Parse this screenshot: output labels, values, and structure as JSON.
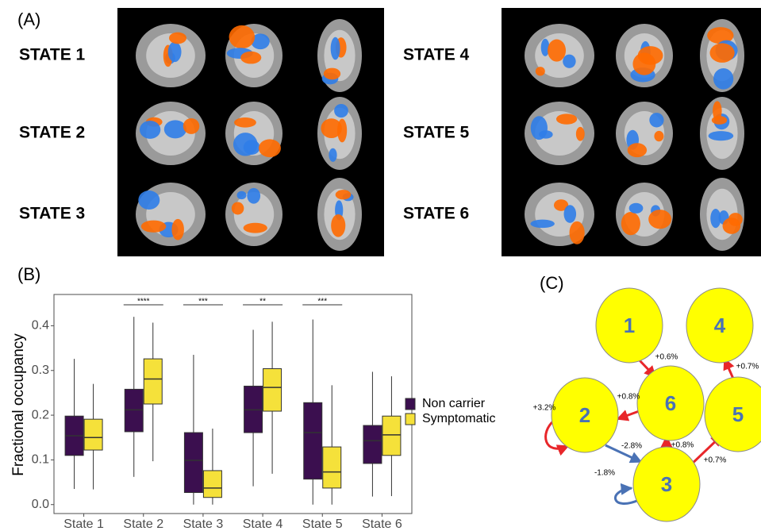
{
  "panel_a": {
    "label": "(A)",
    "states": [
      "STATE 1",
      "STATE 2",
      "STATE 3",
      "STATE 4",
      "STATE 5",
      "STATE 6"
    ]
  },
  "chart_data": {
    "type": "box",
    "label": "(B)",
    "y_label": "Fractional occupancy",
    "categories": [
      "State 1",
      "State 2",
      "State 3",
      "State 4",
      "State 5",
      "State 6"
    ],
    "significance": [
      null,
      "****",
      "***",
      "**",
      "***",
      null
    ],
    "ylim": [
      -0.02,
      0.47
    ],
    "yticks": [
      {
        "value": 0,
        "label": "0.0"
      },
      0.1,
      0.2,
      0.3,
      0.4
    ],
    "grid": false,
    "legend": "right",
    "series": [
      {
        "name": "Non carrier",
        "color": "#3b0f4f",
        "boxes": [
          {
            "low": 0.035,
            "q1": 0.11,
            "median": 0.154,
            "q3": 0.198,
            "high": 0.326
          },
          {
            "low": 0.062,
            "q1": 0.163,
            "median": 0.212,
            "q3": 0.258,
            "high": 0.42
          },
          {
            "low": 0.0,
            "q1": 0.027,
            "median": 0.099,
            "q3": 0.161,
            "high": 0.335
          },
          {
            "low": 0.041,
            "q1": 0.161,
            "median": 0.212,
            "q3": 0.265,
            "high": 0.391
          },
          {
            "low": 0.0,
            "q1": 0.057,
            "median": 0.161,
            "q3": 0.228,
            "high": 0.414
          },
          {
            "low": 0.018,
            "q1": 0.092,
            "median": 0.143,
            "q3": 0.177,
            "high": 0.297
          }
        ]
      },
      {
        "name": "Symptomatic",
        "color": "#f5e13a",
        "boxes": [
          {
            "low": 0.034,
            "q1": 0.122,
            "median": 0.15,
            "q3": 0.191,
            "high": 0.27
          },
          {
            "low": 0.097,
            "q1": 0.225,
            "median": 0.281,
            "q3": 0.326,
            "high": 0.407
          },
          {
            "low": 0.0,
            "q1": 0.016,
            "median": 0.037,
            "q3": 0.076,
            "high": 0.17
          },
          {
            "low": 0.069,
            "q1": 0.209,
            "median": 0.262,
            "q3": 0.304,
            "high": 0.409
          },
          {
            "low": 0.0,
            "q1": 0.037,
            "median": 0.073,
            "q3": 0.129,
            "high": 0.267
          },
          {
            "low": 0.019,
            "q1": 0.11,
            "median": 0.156,
            "q3": 0.198,
            "high": 0.287
          }
        ]
      }
    ]
  },
  "panel_c": {
    "label": "(C)",
    "nodes": [
      {
        "label": "1"
      },
      {
        "label": "4"
      },
      {
        "label": "6"
      },
      {
        "label": "2"
      },
      {
        "label": "5"
      },
      {
        "label": "3"
      }
    ],
    "edges": [
      {
        "label": "+0.6%"
      },
      {
        "label": "+0.8%"
      },
      {
        "label": "+3.2%"
      },
      {
        "label": "-2.8%"
      },
      {
        "label": "-1.8%"
      },
      {
        "label": "+0.8%"
      },
      {
        "label": "+0.7%"
      },
      {
        "label": "+0.7%"
      }
    ]
  }
}
